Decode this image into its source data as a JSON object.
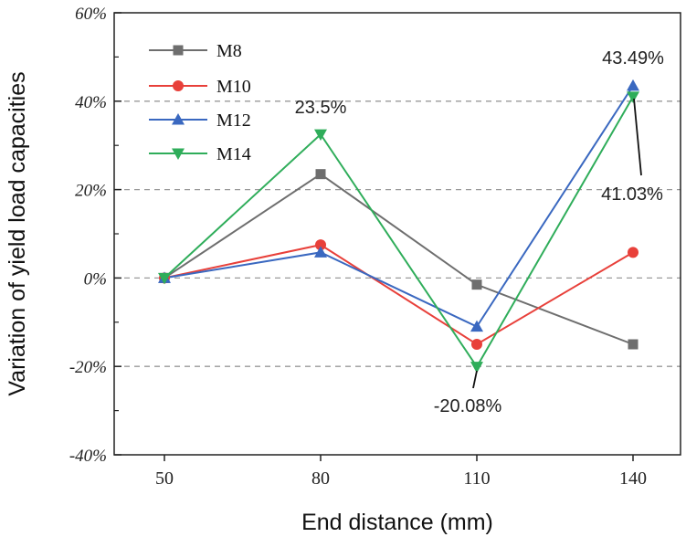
{
  "chart_data": {
    "type": "line",
    "xlabel": "End distance (mm)",
    "ylabel": "Variation of yield load capacities",
    "categories": [
      "50",
      "80",
      "110",
      "140"
    ],
    "ylim": [
      -40,
      60
    ],
    "yticks": [
      -40,
      -20,
      0,
      20,
      40,
      60
    ],
    "ytick_labels": [
      "-40%",
      "-20%",
      "0%",
      "20%",
      "40%",
      "60%"
    ],
    "grid": {
      "horizontal_dashed_at": [
        -20,
        0,
        20,
        40
      ]
    },
    "legend_position": "top-left",
    "series": [
      {
        "name": "M8",
        "values": [
          0,
          23.5,
          -1.5,
          -15
        ],
        "color": "#6e6e6e",
        "marker": "square"
      },
      {
        "name": "M10",
        "values": [
          0,
          7.5,
          -15,
          5.8
        ],
        "color": "#e8403a",
        "marker": "circle"
      },
      {
        "name": "M12",
        "values": [
          0,
          5.8,
          -11,
          43.49
        ],
        "color": "#3a68c0",
        "marker": "triangle-up"
      },
      {
        "name": "M14",
        "values": [
          0,
          32.5,
          -20.08,
          41.03
        ],
        "color": "#2fad5a",
        "marker": "triangle-down"
      }
    ],
    "annotations": [
      {
        "text": "23.5%"
      },
      {
        "text": "43.49%"
      },
      {
        "text": "41.03%"
      },
      {
        "text": "-20.08%"
      }
    ]
  }
}
